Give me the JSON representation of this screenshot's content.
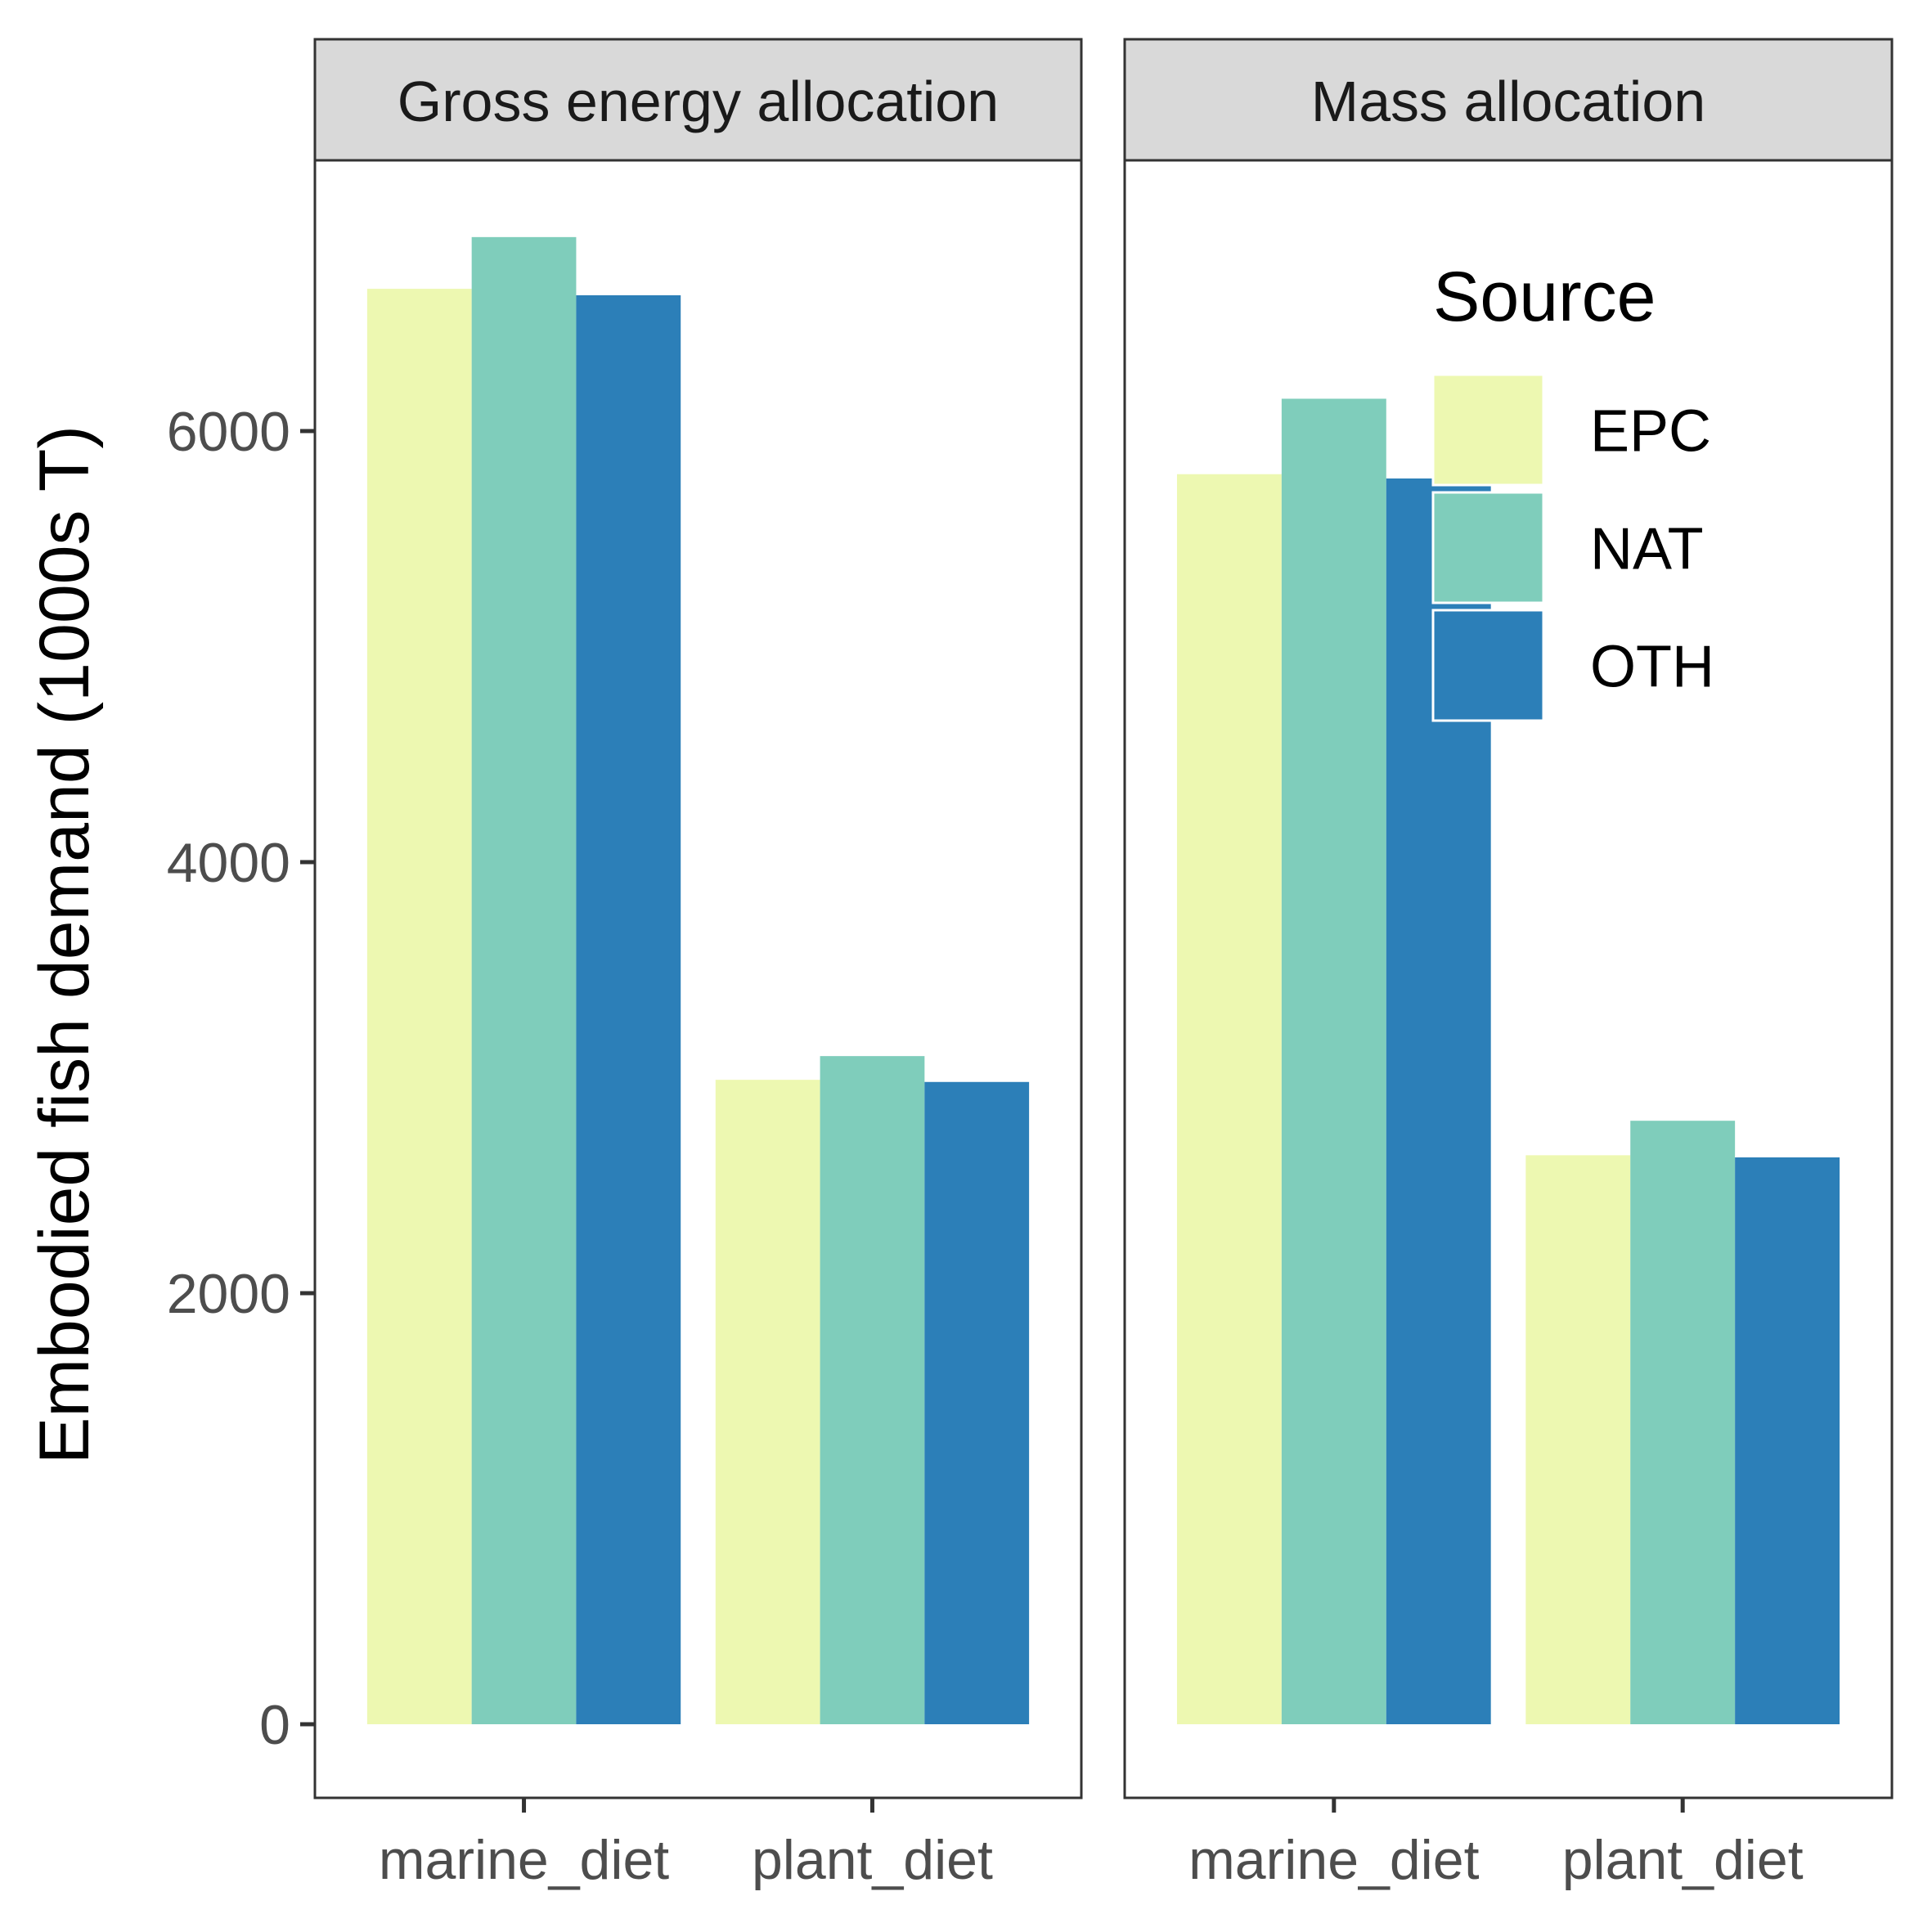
{
  "chart_data": {
    "type": "bar",
    "ylabel": "Embodied fish demand (1000s T)",
    "ylim": [
      -300,
      7000
    ],
    "yticks": [
      0,
      2000,
      4000,
      6000
    ],
    "categories": [
      "marine_diet",
      "plant_diet"
    ],
    "facets": [
      {
        "title": "Gross energy allocation",
        "series": [
          {
            "name": "EPC",
            "values": [
              6660,
              2990
            ]
          },
          {
            "name": "NAT",
            "values": [
              6900,
              3100
            ]
          },
          {
            "name": "OTH",
            "values": [
              6630,
              2980
            ]
          }
        ]
      },
      {
        "title": "Mass allocation",
        "series": [
          {
            "name": "EPC",
            "values": [
              5800,
              2640
            ]
          },
          {
            "name": "NAT",
            "values": [
              6150,
              2800
            ]
          },
          {
            "name": "OTH",
            "values": [
              5780,
              2630
            ]
          }
        ]
      }
    ],
    "legend": {
      "title": "Source",
      "placement": "top-right inside right panel",
      "entries": [
        "EPC",
        "NAT",
        "OTH"
      ]
    },
    "colors": {
      "EPC": "#edf8b1",
      "NAT": "#7fcdbb",
      "OTH": "#2c7fb8"
    },
    "grid": false
  }
}
